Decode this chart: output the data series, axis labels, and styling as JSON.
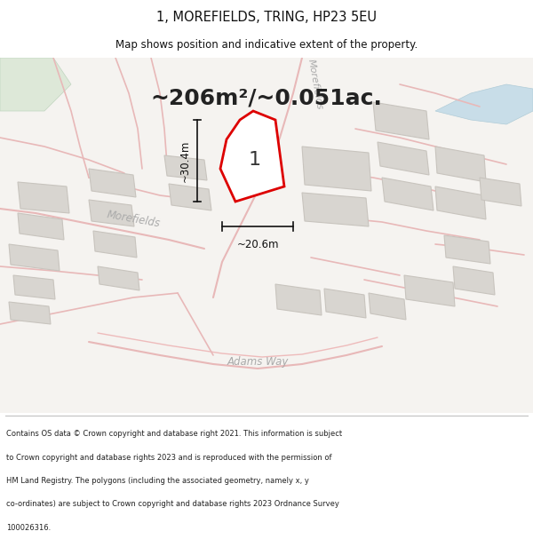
{
  "title": "1, MOREFIELDS, TRING, HP23 5EU",
  "subtitle": "Map shows position and indicative extent of the property.",
  "area_text": "~206m²/~0.051ac.",
  "property_number": "1",
  "dim_width": "~20.6m",
  "dim_height": "~30.4m",
  "bg_color": "#f5f3f0",
  "road_line_color": "#e8b8b8",
  "road_fill_color": "#f8f0f0",
  "building_fill": "#d8d5d0",
  "building_edge": "#c8c4be",
  "plot_fill": "#ffffff",
  "plot_edge": "#dd0000",
  "dim_color": "#111111",
  "text_color": "#111111",
  "road_label_color": "#aaaaaa",
  "water_color": "#c8dde8",
  "green_color": "#dde8d8",
  "footer_text": "Contains OS data © Crown copyright and database right 2021. This information is subject to Crown copyright and database rights 2023 and is reproduced with the permission of HM Land Registry. The polygons (including the associated geometry, namely x, y co-ordinates) are subject to Crown copyright and database rights 2023 Ordnance Survey 100026316.",
  "footer_lines": [
    "Contains OS data © Crown copyright and database right 2021. This information is subject",
    "to Crown copyright and database rights 2023 and is reproduced with the permission of",
    "HM Land Registry. The polygons (including the associated geometry, namely x, y",
    "co-ordinates) are subject to Crown copyright and database rights 2023 Ordnance Survey",
    "100026316."
  ]
}
